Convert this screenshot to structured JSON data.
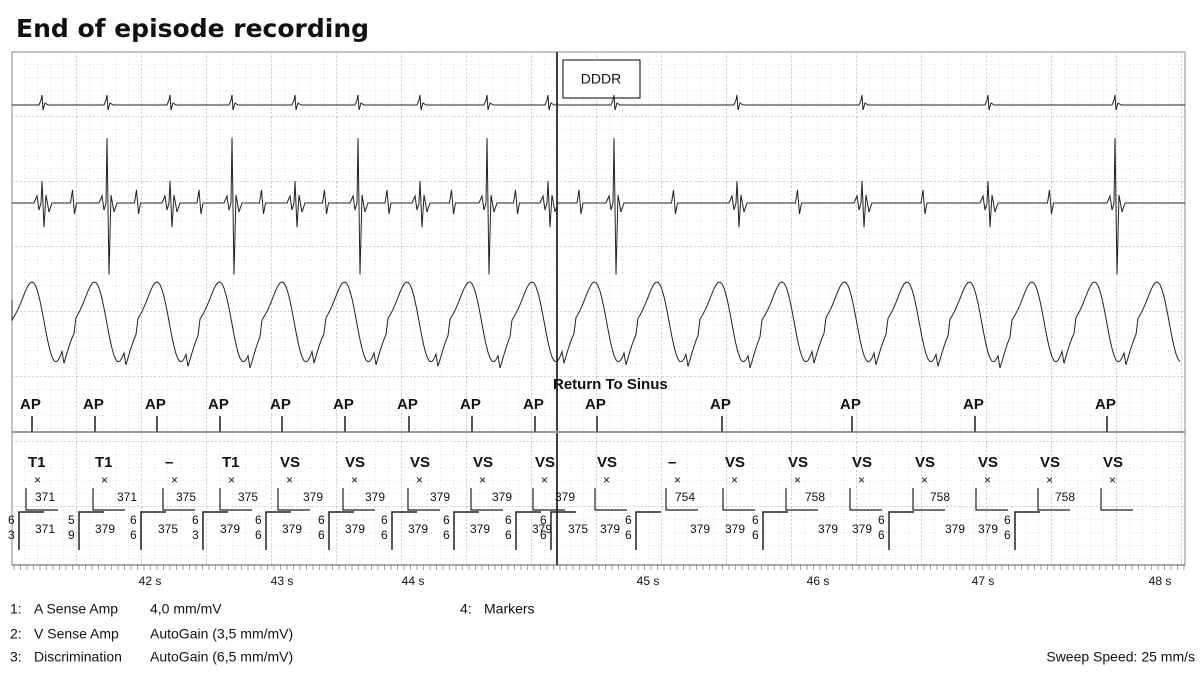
{
  "header": {
    "title": "End of episode recording"
  },
  "mode_box": "DDDR",
  "markers": {
    "annotation": "Return To Sinus",
    "row1": [
      "AP",
      "AP",
      "AP",
      "AP",
      "AP",
      "AP",
      "AP",
      "AP",
      "AP",
      "AP",
      "AP",
      "AP",
      "AP",
      "AP"
    ],
    "row2": [
      "T1",
      "T1",
      "–",
      "T1",
      "VS",
      "VS",
      "VS",
      "VS",
      "VS",
      "VS",
      "–",
      "VS",
      "VS",
      "VS",
      "VS",
      "VS",
      "VS",
      "VS"
    ],
    "row3": [
      "371",
      "371",
      "375",
      "375",
      "379",
      "379",
      "379",
      "379",
      "379",
      "754",
      "758",
      "758",
      "758"
    ],
    "row4": [
      [
        "6",
        "3"
      ],
      "371",
      [
        "5",
        "9"
      ],
      "379",
      [
        "6",
        "6"
      ],
      "375",
      [
        "6",
        "3"
      ],
      "379",
      [
        "6",
        "6"
      ],
      "379",
      [
        "6",
        "6"
      ],
      "379",
      [
        "6",
        "6"
      ],
      "379",
      [
        "6",
        "6"
      ],
      "379",
      [
        "6",
        "6"
      ],
      "379",
      [
        "6",
        "6"
      ],
      "375",
      "379",
      [
        "6",
        "6"
      ],
      "379",
      "379",
      [
        "6",
        "6"
      ],
      "379",
      "379",
      [
        "6",
        "6"
      ],
      "379",
      "379",
      [
        "6",
        "6"
      ]
    ]
  },
  "time_axis": [
    "42 s",
    "43 s",
    "44 s",
    "45 s",
    "46 s",
    "47 s",
    "48 s"
  ],
  "channels": [
    {
      "index": "1:",
      "name": "A Sense Amp",
      "setting": "4,0 mm/mV"
    },
    {
      "index": "2:",
      "name": "V Sense Amp",
      "setting": "AutoGain (3,5 mm/mV)"
    },
    {
      "index": "3:",
      "name": "Discrimination",
      "setting": "AutoGain (6,5 mm/mV)"
    },
    {
      "index": "4:",
      "name": "Markers"
    }
  ],
  "sweep_speed": "Sweep Speed: 25 mm/s"
}
